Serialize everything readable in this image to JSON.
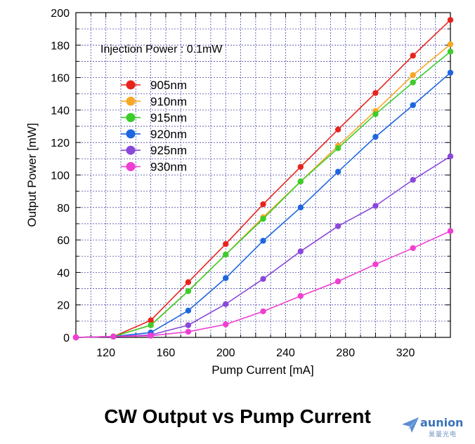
{
  "chart_data": {
    "type": "line",
    "title": "CW Output vs Pump Current",
    "annotation": "Injection Power : 0.1mW",
    "xlabel": "Pump Current [mA]",
    "ylabel": "Output Power [mW]",
    "xlim": [
      100,
      350
    ],
    "ylim": [
      0,
      200
    ],
    "xticks": [
      120,
      160,
      200,
      240,
      280,
      320
    ],
    "yticks": [
      0,
      20,
      40,
      60,
      80,
      100,
      120,
      140,
      160,
      180,
      200
    ],
    "grid": true,
    "legend_position": "top-left",
    "x": [
      100,
      125,
      150,
      175,
      200,
      225,
      250,
      275,
      300,
      325,
      350
    ],
    "series": [
      {
        "name": "905nm",
        "color": "#e8231d",
        "values": [
          0,
          0.5,
          10.5,
          34,
          57.5,
          82,
          105,
          128,
          150.5,
          173.5,
          195.5
        ]
      },
      {
        "name": "910nm",
        "color": "#f9a825",
        "values": [
          0,
          0.5,
          7.5,
          28.5,
          51,
          74,
          96,
          118,
          139.5,
          161.5,
          180.5
        ]
      },
      {
        "name": "915nm",
        "color": "#3dcc2b",
        "values": [
          0,
          0.5,
          7.5,
          28.5,
          51,
          73,
          96,
          116.5,
          137.5,
          157,
          176
        ]
      },
      {
        "name": "920nm",
        "color": "#1e66e0",
        "values": [
          0,
          0.5,
          3,
          16.5,
          36.5,
          59.5,
          80,
          102,
          123.5,
          143,
          163
        ]
      },
      {
        "name": "925nm",
        "color": "#8a48d9",
        "values": [
          0,
          0.5,
          1.5,
          7.5,
          20.5,
          36,
          53,
          68.5,
          81,
          97,
          111.5
        ]
      },
      {
        "name": "930nm",
        "color": "#f03ed2",
        "values": [
          0,
          0.5,
          1,
          3.5,
          8,
          16,
          25.5,
          34.5,
          45,
          55,
          65.5
        ]
      }
    ]
  },
  "logo": {
    "name": "aunion",
    "sub": "昊量光电"
  }
}
